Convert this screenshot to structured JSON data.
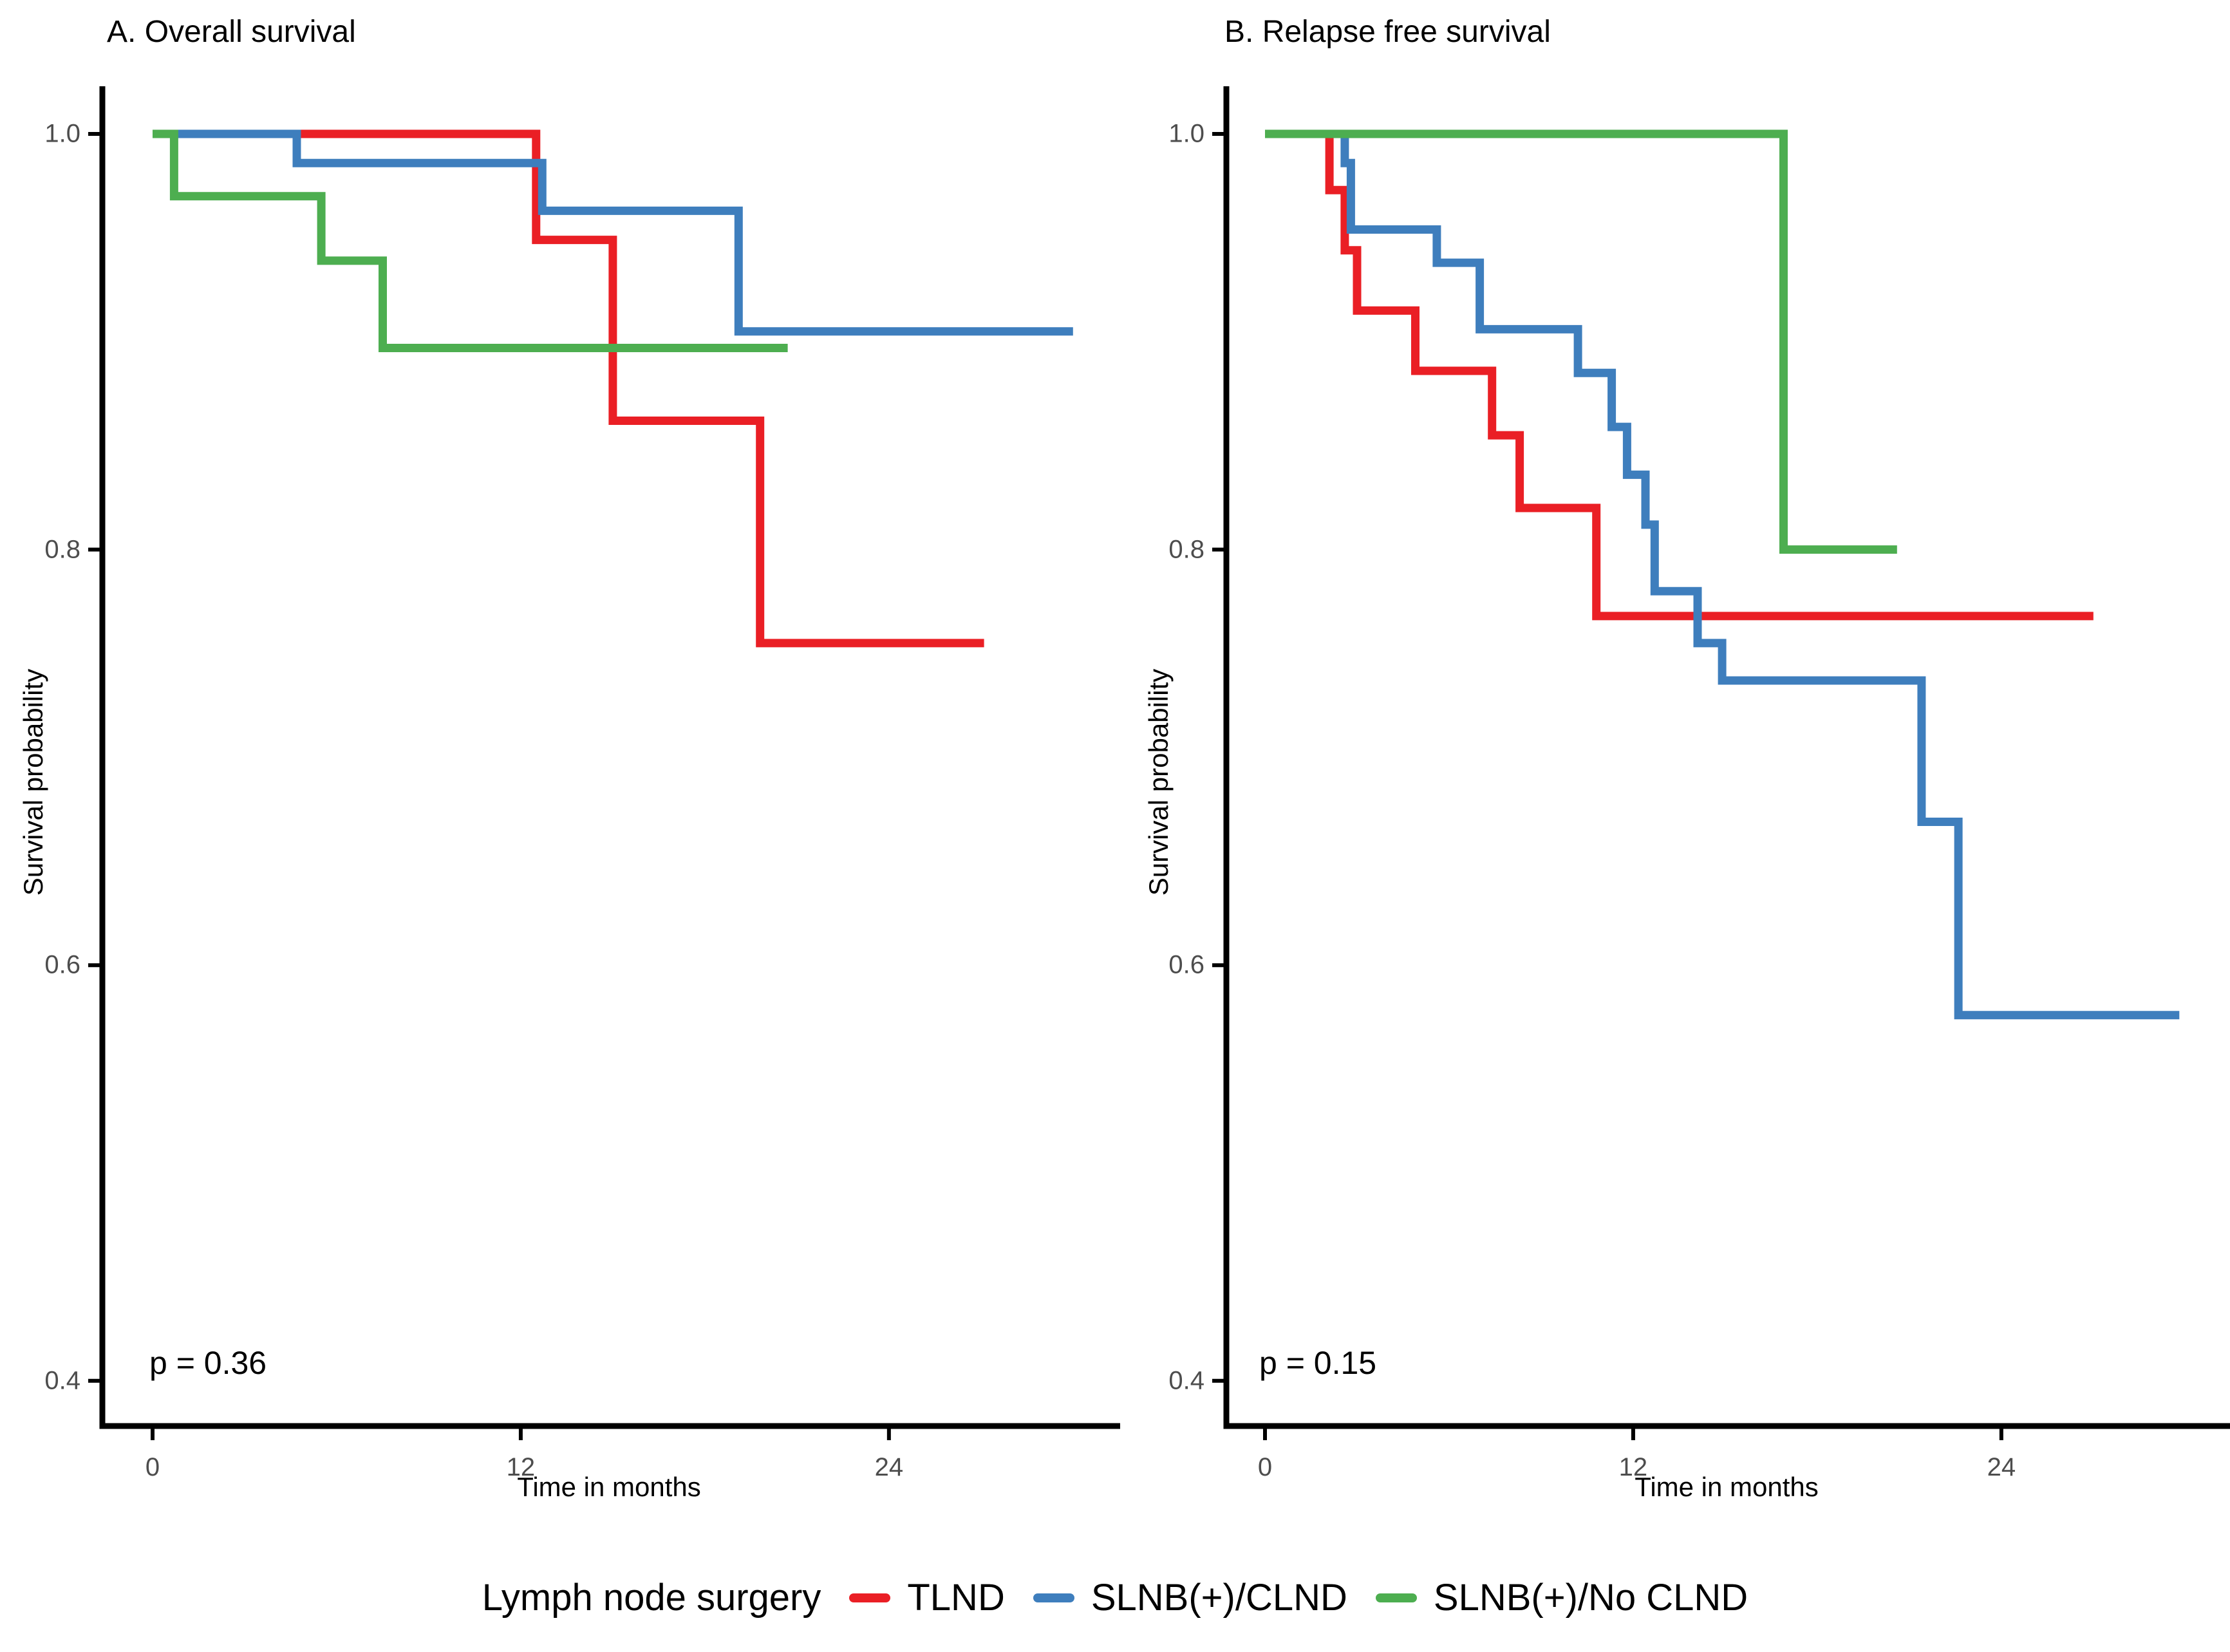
{
  "page": {
    "background": "#ffffff"
  },
  "panels": [
    {
      "title": "A. Overall survival",
      "pvalue": "p = 0.36",
      "xlabel": "Time in months",
      "ylabel": "Survival probability"
    },
    {
      "title": "B. Relapse free survival",
      "pvalue": "p = 0.15",
      "xlabel": "Time in months",
      "ylabel": "Survival probability"
    }
  ],
  "legend": {
    "title": "Lymph node surgery",
    "items": [
      {
        "label": "TLND",
        "color": "#EA1F25"
      },
      {
        "label": "SLNB(+)/CLND",
        "color": "#3E7EBD"
      },
      {
        "label": "SLNB(+)/No CLND",
        "color": "#4DAE50"
      }
    ]
  },
  "colors": {
    "axis": "#000000",
    "tick_label": "#4d4d4d"
  },
  "chart_data": [
    {
      "type": "line",
      "subtype": "kaplan-meier-step",
      "title": "A. Overall survival",
      "xlabel": "Time in months",
      "ylabel": "Survival probability",
      "annotation": "p = 0.36",
      "xlim": [
        0,
        31.4
      ],
      "ylim": [
        0.38,
        1.02
      ],
      "xticks": [
        0,
        12,
        24
      ],
      "xticklabels": [
        "0",
        "12",
        "24"
      ],
      "yticks": [
        1.0,
        0.8,
        0.6,
        0.4
      ],
      "yticklabels": [
        "1.0",
        "0.8",
        "0.6",
        "0.4"
      ],
      "grid": false,
      "legend_position": "bottom-shared",
      "series": [
        {
          "name": "TLND",
          "color": "#EA1F25",
          "points": [
            [
              0,
              1.0
            ],
            [
              12.5,
              1.0
            ],
            [
              12.5,
              0.949
            ],
            [
              15.0,
              0.949
            ],
            [
              15.0,
              0.862
            ],
            [
              19.8,
              0.862
            ],
            [
              19.8,
              0.755
            ],
            [
              27.1,
              0.755
            ]
          ]
        },
        {
          "name": "SLNB(+)/CLND",
          "color": "#3E7EBD",
          "points": [
            [
              0,
              1.0
            ],
            [
              4.7,
              1.0
            ],
            [
              4.7,
              0.986
            ],
            [
              12.7,
              0.986
            ],
            [
              12.7,
              0.963
            ],
            [
              19.1,
              0.963
            ],
            [
              19.1,
              0.905
            ],
            [
              30.0,
              0.905
            ]
          ]
        },
        {
          "name": "SLNB(+)/No CLND",
          "color": "#4DAE50",
          "points": [
            [
              0,
              1.0
            ],
            [
              0.7,
              1.0
            ],
            [
              0.7,
              0.97
            ],
            [
              5.5,
              0.97
            ],
            [
              5.5,
              0.939
            ],
            [
              7.5,
              0.939
            ],
            [
              7.5,
              0.897
            ],
            [
              20.7,
              0.897
            ]
          ]
        }
      ]
    },
    {
      "type": "line",
      "subtype": "kaplan-meier-step",
      "title": "B. Relapse free survival",
      "xlabel": "Time in months",
      "ylabel": "Survival probability",
      "annotation": "p = 0.15",
      "xlim": [
        0,
        31.4
      ],
      "ylim": [
        0.38,
        1.02
      ],
      "xticks": [
        0,
        12,
        24
      ],
      "xticklabels": [
        "0",
        "12",
        "24"
      ],
      "yticks": [
        1.0,
        0.8,
        0.6,
        0.4
      ],
      "yticklabels": [
        "1.0",
        "0.8",
        "0.6",
        "0.4"
      ],
      "grid": false,
      "legend_position": "bottom-shared",
      "series": [
        {
          "name": "TLND",
          "color": "#EA1F25",
          "points": [
            [
              0,
              1.0
            ],
            [
              2.1,
              1.0
            ],
            [
              2.1,
              0.973
            ],
            [
              2.6,
              0.973
            ],
            [
              2.6,
              0.944
            ],
            [
              3.0,
              0.944
            ],
            [
              3.0,
              0.915
            ],
            [
              4.9,
              0.915
            ],
            [
              4.9,
              0.886
            ],
            [
              7.4,
              0.886
            ],
            [
              7.4,
              0.855
            ],
            [
              8.3,
              0.855
            ],
            [
              8.3,
              0.82
            ],
            [
              10.8,
              0.82
            ],
            [
              10.8,
              0.768
            ],
            [
              27.0,
              0.768
            ]
          ]
        },
        {
          "name": "SLNB(+)/CLND",
          "color": "#3E7EBD",
          "points": [
            [
              0,
              1.0
            ],
            [
              2.6,
              1.0
            ],
            [
              2.6,
              0.986
            ],
            [
              2.8,
              0.986
            ],
            [
              2.8,
              0.954
            ],
            [
              5.6,
              0.954
            ],
            [
              5.6,
              0.938
            ],
            [
              7.0,
              0.938
            ],
            [
              7.0,
              0.906
            ],
            [
              10.2,
              0.906
            ],
            [
              10.2,
              0.885
            ],
            [
              11.3,
              0.885
            ],
            [
              11.3,
              0.859
            ],
            [
              11.8,
              0.859
            ],
            [
              11.8,
              0.836
            ],
            [
              12.4,
              0.836
            ],
            [
              12.4,
              0.812
            ],
            [
              12.7,
              0.812
            ],
            [
              12.7,
              0.78
            ],
            [
              14.1,
              0.78
            ],
            [
              14.1,
              0.755
            ],
            [
              14.9,
              0.755
            ],
            [
              14.9,
              0.737
            ],
            [
              21.4,
              0.737
            ],
            [
              21.4,
              0.669
            ],
            [
              22.6,
              0.669
            ],
            [
              22.6,
              0.576
            ],
            [
              29.8,
              0.576
            ]
          ]
        },
        {
          "name": "SLNB(+)/No CLND",
          "color": "#4DAE50",
          "points": [
            [
              0,
              1.0
            ],
            [
              16.9,
              1.0
            ],
            [
              16.9,
              0.8
            ],
            [
              20.6,
              0.8
            ]
          ]
        }
      ]
    }
  ]
}
